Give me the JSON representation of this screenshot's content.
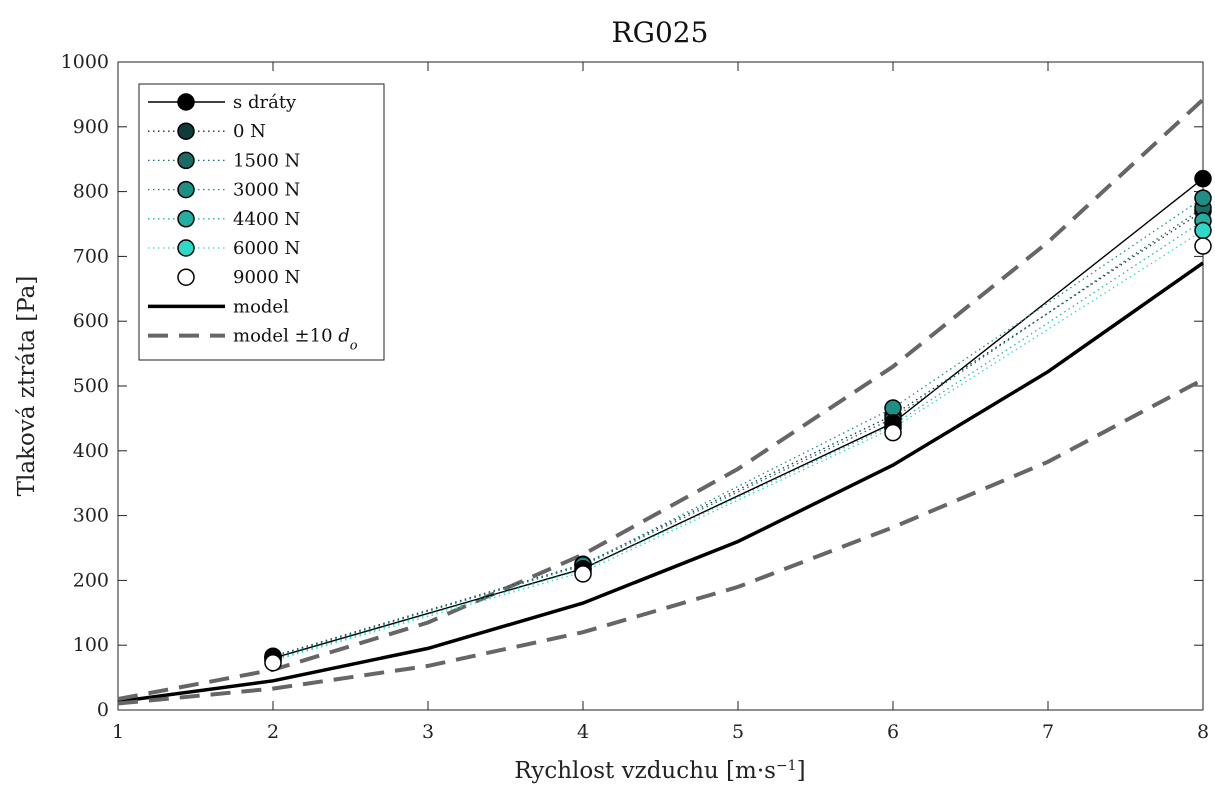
{
  "chart_data": {
    "type": "line",
    "title": "RG025",
    "xlabel": "Rychlost vzduchu [m·s",
    "xlabel_sup": "−1",
    "xlabel_end": "]",
    "ylabel": "Tlaková ztráta [Pa]",
    "xlim": [
      1,
      8
    ],
    "ylim": [
      0,
      1000
    ],
    "xticks": [
      1,
      2,
      3,
      4,
      5,
      6,
      7,
      8
    ],
    "yticks": [
      0,
      100,
      200,
      300,
      400,
      500,
      600,
      700,
      800,
      900,
      1000
    ],
    "x_tick_labels": [
      "1",
      "2",
      "3",
      "4",
      "5",
      "6",
      "7",
      "8"
    ],
    "x_tick_positions": [
      1,
      2,
      3,
      4,
      5,
      6,
      7,
      8
    ],
    "x_tick_label_positions": [
      1,
      2,
      3,
      4,
      5,
      6,
      7,
      8
    ],
    "legend_position": "top-left",
    "grid": false,
    "measured_x_labels": [
      "2",
      "4",
      "6",
      "8"
    ],
    "series": [
      {
        "name": "s dráty",
        "style": "solid-marker",
        "color": "#000000",
        "marker_fill": "#000000",
        "points": [
          [
            2,
            80
          ],
          [
            4,
            218
          ],
          [
            6,
            443
          ],
          [
            8,
            820
          ]
        ]
      },
      {
        "name": "0 N",
        "style": "dotted-marker",
        "color": "#0d3b3b",
        "marker_fill": "#0f3c3a",
        "points": [
          [
            2,
            83
          ],
          [
            4,
            225
          ],
          [
            6,
            455
          ],
          [
            8,
            770
          ]
        ]
      },
      {
        "name": "1500 N",
        "style": "dotted-marker",
        "color": "#1a6a64",
        "marker_fill": "#1b6b63",
        "points": [
          [
            2,
            82
          ],
          [
            4,
            223
          ],
          [
            6,
            450
          ],
          [
            8,
            775
          ]
        ]
      },
      {
        "name": "3000 N",
        "style": "dotted-marker",
        "color": "#1c9088",
        "marker_fill": "#1d8f86",
        "points": [
          [
            2,
            81
          ],
          [
            4,
            224
          ],
          [
            6,
            466
          ],
          [
            8,
            790
          ]
        ]
      },
      {
        "name": "4400 N",
        "style": "dotted-marker",
        "color": "#25b3a8",
        "marker_fill": "#24ada3",
        "points": [
          [
            2,
            78
          ],
          [
            4,
            217
          ],
          [
            6,
            440
          ],
          [
            8,
            755
          ]
        ]
      },
      {
        "name": "6000 N",
        "style": "dotted-marker",
        "color": "#33d6c8",
        "marker_fill": "#2fd8c7",
        "points": [
          [
            2,
            76
          ],
          [
            4,
            213
          ],
          [
            6,
            435
          ],
          [
            8,
            740
          ]
        ]
      },
      {
        "name": "9000 N",
        "style": "marker-only",
        "color": "#000000",
        "marker_fill": "#ffffff",
        "points": [
          [
            2,
            73
          ],
          [
            4,
            210
          ],
          [
            6,
            428
          ],
          [
            8,
            716
          ]
        ]
      },
      {
        "name": "model",
        "style": "thick-line",
        "color": "#000000",
        "points": [
          [
            1,
            13
          ],
          [
            2,
            45
          ],
          [
            3,
            95
          ],
          [
            4,
            165
          ],
          [
            5,
            260
          ],
          [
            6,
            378
          ],
          [
            7,
            522
          ],
          [
            8,
            690
          ]
        ]
      },
      {
        "name": "model ±10",
        "name_italic": "d",
        "name_sub": "o",
        "style": "dashed-line",
        "color": "#666666",
        "points": [
          [
            1,
            17
          ],
          [
            2,
            62
          ],
          [
            3,
            135
          ],
          [
            4,
            240
          ],
          [
            5,
            372
          ],
          [
            6,
            530
          ],
          [
            7,
            722
          ],
          [
            8,
            942
          ]
        ]
      },
      {
        "name": "",
        "style": "dashed-line",
        "color": "#666666",
        "points": [
          [
            1,
            10
          ],
          [
            2,
            33
          ],
          [
            3,
            68
          ],
          [
            4,
            120
          ],
          [
            5,
            190
          ],
          [
            6,
            282
          ],
          [
            7,
            383
          ],
          [
            8,
            510
          ]
        ]
      }
    ]
  }
}
